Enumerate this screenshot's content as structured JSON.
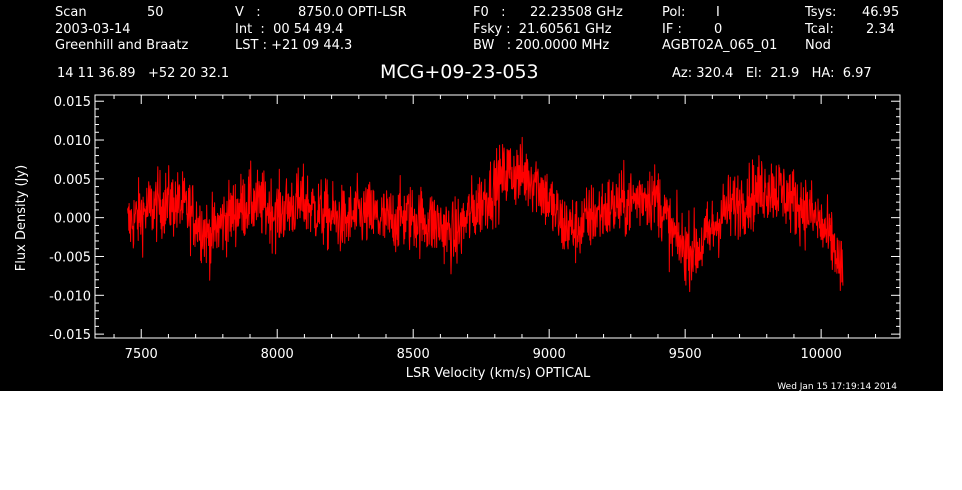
{
  "header": {
    "scan_label": "Scan",
    "scan_value": "50",
    "date": "2003-03-14",
    "observers": "Greenhill and Braatz",
    "v_label": "V   :",
    "v_value": "8750.0 OPTI-LSR",
    "int_line": "Int  :  00 54 49.4",
    "lst_line": "LST : +21 09 44.3",
    "f0_label": "F0   :",
    "f0_value": "22.23508 GHz",
    "fsky_line": "Fsky :  21.60561 GHz",
    "bw_line": "BW   : 200.0000 MHz",
    "pol_label": "Pol:",
    "pol_value": "I",
    "if_label": "IF :",
    "if_value": "0",
    "project": "AGBT02A_065_01",
    "tsys_label": "Tsys:",
    "tsys_value": "46.95",
    "tcal_label": "Tcal:",
    "tcal_value": "2.34",
    "mode": "Nod",
    "coords": "14 11 36.89   +52 20 32.1",
    "source": "MCG+09-23-053",
    "az_el_ha": "Az: 320.4   El:  21.9   HA:  6.97"
  },
  "timestamp": "Wed Jan 15 17:19:14 2014",
  "colors": {
    "background": "#000000",
    "axes": "#ffffff",
    "spectrum": "#ff0000"
  },
  "chart_data": {
    "type": "line",
    "xlabel": "LSR Velocity (km/s) OPTICAL",
    "ylabel": "Flux Density (Jy)",
    "xlim": [
      7330,
      10290
    ],
    "ylim": [
      -0.0155,
      0.0158
    ],
    "xticks": [
      7500,
      8000,
      8500,
      9000,
      9500,
      10000
    ],
    "xtick_labels": [
      "7500",
      "8000",
      "8500",
      "9000",
      "9500",
      "10000"
    ],
    "yticks": [
      0.015,
      0.01,
      0.005,
      0.0,
      -0.005,
      -0.01,
      -0.015
    ],
    "ytick_labels": [
      "0.015",
      "0.010",
      "0.005",
      "0.000",
      "-0.005",
      "-0.010",
      "-0.015"
    ],
    "series": [
      {
        "x": [
          7450,
          7500,
          7550,
          7600,
          7650,
          7700,
          7750,
          7800,
          7850,
          7900,
          7950,
          8000,
          8050,
          8100,
          8150,
          8200,
          8250,
          8300,
          8350,
          8400,
          8450,
          8500,
          8550,
          8600,
          8650,
          8700,
          8750,
          8800,
          8850,
          8900,
          8950,
          9000,
          9050,
          9100,
          9150,
          9200,
          9250,
          9300,
          9350,
          9400,
          9450,
          9500,
          9550,
          9600,
          9650,
          9700,
          9750,
          9800,
          9850,
          9900,
          9950,
          10000,
          10050,
          10080
        ],
        "y": [
          -0.001,
          0.0005,
          0.0015,
          0.002,
          0.0015,
          0.0,
          -0.0025,
          -0.0005,
          0.001,
          0.002,
          0.0015,
          0.0005,
          0.0015,
          0.002,
          0.0008,
          0.0,
          -0.0005,
          0.0005,
          0.0002,
          -0.0005,
          0.0,
          0.0,
          -0.0005,
          -0.001,
          -0.0025,
          0.0,
          0.002,
          0.004,
          0.006,
          0.0055,
          0.005,
          0.002,
          -0.001,
          -0.0015,
          0.0,
          0.001,
          0.0015,
          0.002,
          0.003,
          0.0025,
          -0.002,
          -0.004,
          -0.004,
          -0.0015,
          0.001,
          0.002,
          0.003,
          0.004,
          0.0035,
          0.002,
          0.001,
          -0.001,
          -0.004,
          -0.008
        ],
        "noise_rms": 0.0022
      }
    ]
  }
}
